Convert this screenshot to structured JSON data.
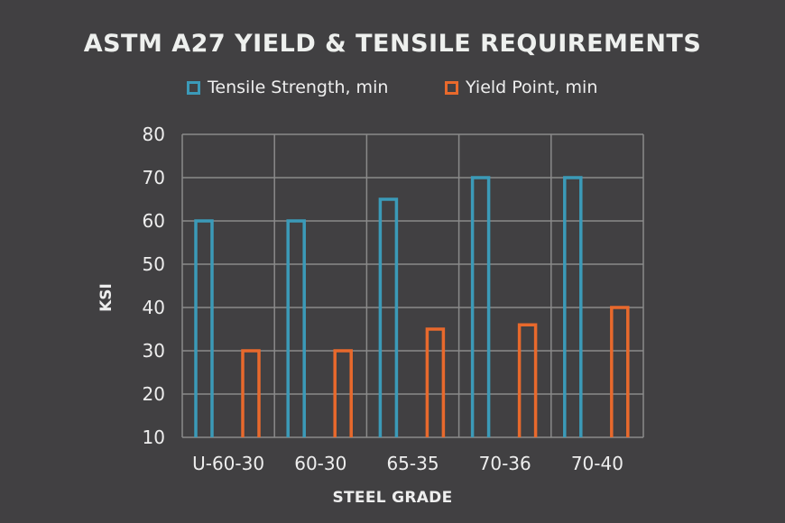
{
  "chart_data": {
    "type": "bar",
    "title": "ASTM A27 YIELD & TENSILE REQUIREMENTS",
    "xlabel": "STEEL GRADE",
    "ylabel": "KSI",
    "ylim": [
      10,
      80
    ],
    "yticks": [
      10,
      20,
      30,
      40,
      50,
      60,
      70,
      80
    ],
    "grid": true,
    "legend_position": "top",
    "categories": [
      "U-60-30",
      "60-30",
      "65-35",
      "70-36",
      "70-40"
    ],
    "series": [
      {
        "name": "Tensile Strength, min",
        "color": "#3b9ab8",
        "values": [
          60,
          60,
          65,
          70,
          70
        ]
      },
      {
        "name": "Yield Point, min",
        "color": "#e8692c",
        "values": [
          30,
          30,
          35,
          36,
          40
        ]
      }
    ]
  },
  "colors": {
    "background": "#414042",
    "grid": "#8a8a8a",
    "text": "#eeeeee"
  }
}
